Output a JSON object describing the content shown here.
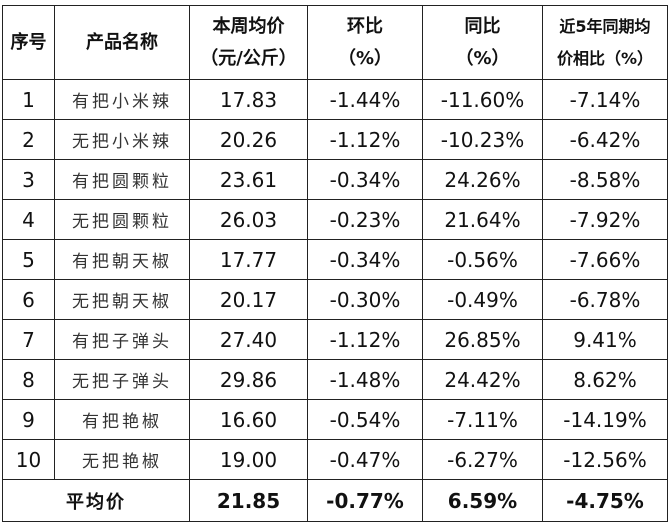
{
  "table": {
    "header": [
      [
        "序号"
      ],
      [
        "产品名称"
      ],
      [
        "本周均价",
        "（元/公斤）"
      ],
      [
        "环比",
        "（%）"
      ],
      [
        "同比",
        "（%）"
      ],
      [
        "近5年同期均",
        "价相比（%）"
      ]
    ],
    "rows": [
      [
        "1",
        "有把小米辣",
        "17.83",
        "-1.44%",
        "-11.60%",
        "-7.14%"
      ],
      [
        "2",
        "无把小米辣",
        "20.26",
        "-1.12%",
        "-10.23%",
        "-6.42%"
      ],
      [
        "3",
        "有把圆颗粒",
        "23.61",
        "-0.34%",
        "24.26%",
        "-8.58%"
      ],
      [
        "4",
        "无把圆颗粒",
        "26.03",
        "-0.23%",
        "21.64%",
        "-7.92%"
      ],
      [
        "5",
        "有把朝天椒",
        "17.77",
        "-0.34%",
        "-0.56%",
        "-7.66%"
      ],
      [
        "6",
        "无把朝天椒",
        "20.17",
        "-0.30%",
        "-0.49%",
        "-6.78%"
      ],
      [
        "7",
        "有把子弹头",
        "27.40",
        "-1.12%",
        "26.85%",
        "9.41%"
      ],
      [
        "8",
        "无把子弹头",
        "29.86",
        "-1.48%",
        "24.42%",
        "8.62%"
      ],
      [
        "9",
        "有把艳椒",
        "16.60",
        "-0.54%",
        "-7.11%",
        "-14.19%"
      ],
      [
        "10",
        "无把艳椒",
        "19.00",
        "-0.47%",
        "-6.27%",
        "-12.56%"
      ]
    ],
    "footer": [
      "平均价",
      "21.85",
      "-0.77%",
      "6.59%",
      "-4.75%"
    ]
  }
}
